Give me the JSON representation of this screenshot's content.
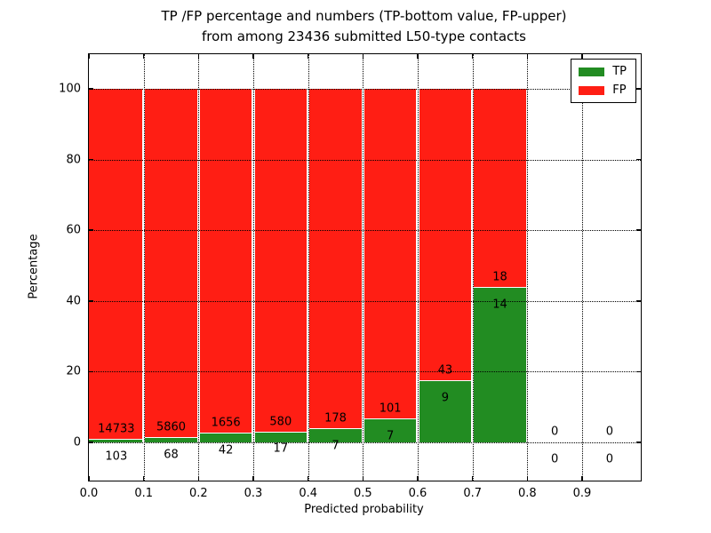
{
  "chart_data": {
    "type": "bar",
    "stacked": true,
    "normalized_to_percent": true,
    "title_line1": "TP /FP percentage and numbers (TP-bottom value, FP-upper)",
    "title_line2": "from among 23436 submitted L50-type contacts",
    "total_submitted": 23436,
    "xlabel": "Predicted probability",
    "ylabel": "Percentage",
    "xticks": [
      "0.0",
      "0.1",
      "0.2",
      "0.3",
      "0.4",
      "0.5",
      "0.6",
      "0.7",
      "0.8",
      "0.9"
    ],
    "yticks": [
      "0",
      "20",
      "40",
      "60",
      "80",
      "100"
    ],
    "xlim": [
      0.0,
      1.007
    ],
    "ylim": [
      -10.8,
      109.8
    ],
    "bin_width": 0.1,
    "grid": true,
    "grid_style": "dotted",
    "legend_position": "upper right",
    "legend": [
      {
        "label": "TP",
        "color": "#228c22"
      },
      {
        "label": "FP",
        "color": "#ff1e14"
      }
    ],
    "bins": [
      {
        "range": "0.0-0.1",
        "tp": 103,
        "fp": 14733,
        "tp_pct": 0.69,
        "fp_pct": 99.31
      },
      {
        "range": "0.1-0.2",
        "tp": 68,
        "fp": 5860,
        "tp_pct": 1.15,
        "fp_pct": 98.85
      },
      {
        "range": "0.2-0.3",
        "tp": 42,
        "fp": 1656,
        "tp_pct": 2.47,
        "fp_pct": 97.53
      },
      {
        "range": "0.3-0.4",
        "tp": 17,
        "fp": 580,
        "tp_pct": 2.85,
        "fp_pct": 97.15
      },
      {
        "range": "0.4-0.5",
        "tp": 7,
        "fp": 178,
        "tp_pct": 3.78,
        "fp_pct": 96.22
      },
      {
        "range": "0.5-0.6",
        "tp": 7,
        "fp": 101,
        "tp_pct": 6.48,
        "fp_pct": 93.52
      },
      {
        "range": "0.6-0.7",
        "tp": 9,
        "fp": 43,
        "tp_pct": 17.31,
        "fp_pct": 82.69
      },
      {
        "range": "0.7-0.8",
        "tp": 14,
        "fp": 18,
        "tp_pct": 43.75,
        "fp_pct": 56.25
      },
      {
        "range": "0.8-0.9",
        "tp": 0,
        "fp": 0,
        "tp_pct": 0,
        "fp_pct": 0
      },
      {
        "range": "0.9-1.0",
        "tp": 0,
        "fp": 0,
        "tp_pct": 0,
        "fp_pct": 0
      }
    ],
    "colors": {
      "tp": "#228c22",
      "fp": "#ff1e14",
      "grid": "#000000",
      "text": "#000000",
      "background": "#ffffff"
    }
  }
}
